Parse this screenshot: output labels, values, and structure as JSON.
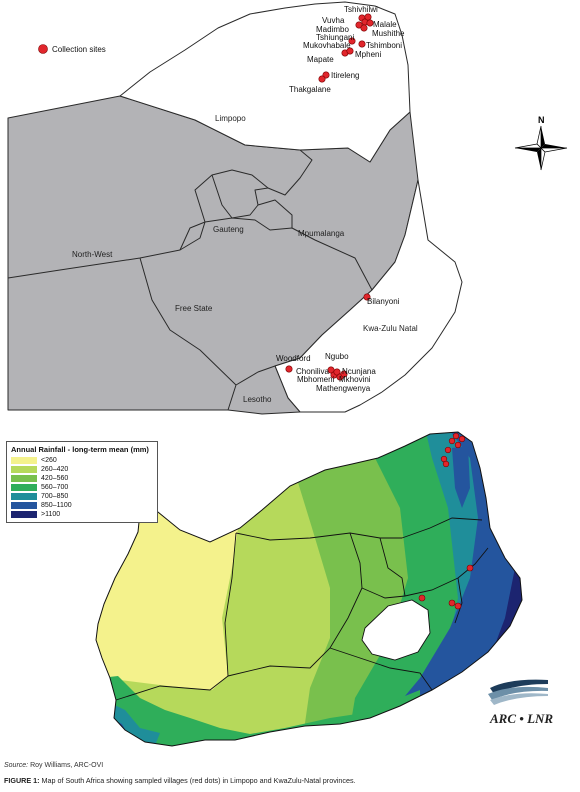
{
  "top_map": {
    "legend_label": "Collection sites",
    "provinces": [
      "Limpopo",
      "Mpumalanga",
      "Gauteng",
      "North-West",
      "Free State",
      "Kwa-Zulu Natal",
      "Lesotho"
    ],
    "sites": [
      "Tshivhilwi",
      "Vuvha",
      "Madimbo",
      "Malale",
      "Tshiungani",
      "Mushithe",
      "Mukovhabale",
      "Tshimboni",
      "Mpheni",
      "Mapate",
      "Itireleng",
      "Thakgalane",
      "Bilanyoni",
      "Woodford",
      "Ngubo",
      "Choniliva",
      "Ncunjana",
      "Mbhomeni",
      "Mkhovini",
      "Mathengwenya"
    ],
    "north_label": "N",
    "colors": {
      "limpopo": "#ffffff",
      "kzn": "#ffffff",
      "other": "#b3b3b6",
      "border": "#2a2a2a",
      "site": "#e1262c"
    }
  },
  "rainfall_map": {
    "legend_title": "Annual Rainfall - long-term mean (mm)",
    "legend": [
      {
        "label": "<260",
        "color": "#f4f28c"
      },
      {
        "label": "260–420",
        "color": "#b6d95b"
      },
      {
        "label": "420–560",
        "color": "#79c04d"
      },
      {
        "label": "560–700",
        "color": "#2fae5a"
      },
      {
        "label": "700–850",
        "color": "#1f8e9a"
      },
      {
        "label": "850–1100",
        "color": "#24559e"
      },
      {
        "label": ">1100",
        "color": "#1c2470"
      }
    ],
    "logo_text": "ARC • LNR"
  },
  "source": {
    "label": "Source:",
    "text": " Roy Williams, ARC-OVI"
  },
  "caption": {
    "label": "FIGURE 1:",
    "text": " Map of South Africa showing sampled villages (red dots) in Limpopo and KwaZulu-Natal provinces."
  }
}
